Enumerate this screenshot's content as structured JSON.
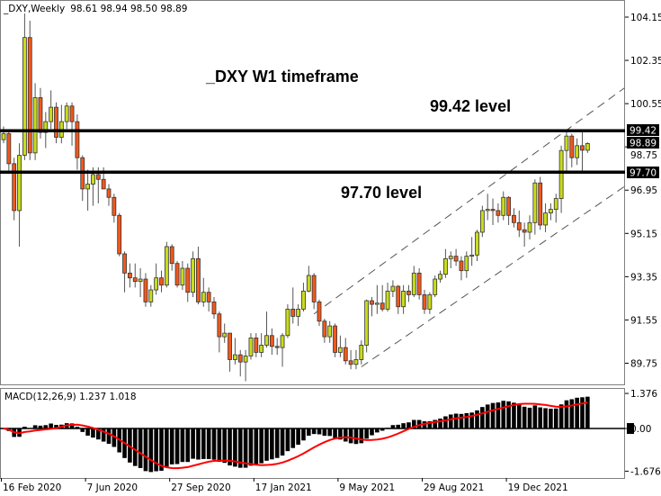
{
  "header": {
    "symbol": "_DXY,Weekly",
    "ohlc_text": "98.61 98.94 98.50 98.89"
  },
  "annotations": {
    "title": "_DXY W1 timeframe",
    "upper_level": "99.42 level",
    "lower_level": "97.70 level"
  },
  "colors": {
    "up": "#c9dc1c",
    "down": "#f2581c",
    "level_line": "#000000",
    "signal": "#ff0000",
    "histogram": "#000000"
  },
  "chart_data": [
    {
      "type": "candlestick",
      "title": "_DXY,Weekly",
      "y_ticks": [
        "104.15",
        "102.35",
        "100.55",
        "98.75",
        "96.95",
        "95.15",
        "93.35",
        "91.55",
        "89.75"
      ],
      "x_ticks": [
        "16 Feb 2020",
        "7 Jun 2020",
        "27 Sep 2020",
        "17 Jan 2021",
        "9 May 2021",
        "29 Aug 2021",
        "19 Dec 2021"
      ],
      "ylim": [
        89.2,
        104.8
      ],
      "price_labels": {
        "upper": "99.42",
        "current": "98.89",
        "lower": "97.70"
      },
      "horizontal_levels": [
        99.42,
        97.7
      ],
      "channel": {
        "upper": [
          [
            59,
            91.8
          ],
          [
            118,
            101.2
          ]
        ],
        "lower": [
          [
            68,
            89.6
          ],
          [
            118,
            97.1
          ]
        ]
      },
      "ohlc": [
        [
          99.05,
          99.6,
          98.9,
          99.3
        ],
        [
          99.3,
          99.4,
          97.7,
          98.05
        ],
        [
          98.05,
          98.3,
          95.7,
          96.1
        ],
        [
          96.1,
          98.9,
          94.6,
          98.4
        ],
        [
          98.4,
          104.3,
          98.2,
          103.3
        ],
        [
          103.3,
          104.0,
          98.2,
          98.5
        ],
        [
          98.5,
          101.4,
          98.2,
          100.8
        ],
        [
          100.8,
          101.2,
          99.1,
          99.35
        ],
        [
          99.35,
          100.2,
          98.7,
          99.8
        ],
        [
          99.8,
          101.1,
          99.5,
          100.4
        ],
        [
          100.4,
          100.6,
          98.9,
          99.15
        ],
        [
          99.15,
          100.5,
          98.9,
          99.8
        ],
        [
          99.8,
          100.6,
          99.5,
          100.45
        ],
        [
          100.45,
          100.6,
          98.8,
          99.8
        ],
        [
          99.8,
          100.1,
          97.8,
          98.3
        ],
        [
          98.3,
          98.4,
          96.5,
          97.0
        ],
        [
          97.0,
          97.8,
          96.1,
          97.2
        ],
        [
          97.2,
          97.9,
          96.3,
          97.6
        ],
        [
          97.6,
          97.9,
          96.4,
          97.4
        ],
        [
          97.4,
          97.9,
          97.0,
          97.0
        ],
        [
          97.0,
          97.2,
          96.3,
          96.65
        ],
        [
          96.65,
          96.8,
          95.6,
          95.9
        ],
        [
          95.9,
          96.0,
          94.2,
          94.3
        ],
        [
          94.3,
          94.4,
          92.7,
          93.5
        ],
        [
          93.5,
          93.9,
          92.9,
          93.3
        ],
        [
          93.3,
          93.9,
          92.9,
          93.15
        ],
        [
          93.15,
          93.7,
          92.5,
          93.25
        ],
        [
          93.25,
          93.5,
          92.1,
          92.3
        ],
        [
          92.3,
          93.0,
          92.1,
          92.8
        ],
        [
          92.8,
          93.9,
          92.6,
          93.3
        ],
        [
          93.3,
          93.6,
          92.7,
          93.0
        ],
        [
          93.0,
          94.8,
          92.9,
          94.6
        ],
        [
          94.6,
          94.7,
          93.6,
          93.9
        ],
        [
          93.9,
          94.0,
          92.9,
          93.0
        ],
        [
          93.0,
          94.0,
          92.8,
          93.7
        ],
        [
          93.7,
          93.9,
          92.3,
          92.7
        ],
        [
          92.7,
          94.4,
          92.5,
          94.1
        ],
        [
          94.1,
          94.6,
          92.2,
          92.3
        ],
        [
          92.3,
          93.3,
          92.1,
          92.7
        ],
        [
          92.7,
          92.9,
          91.9,
          92.3
        ],
        [
          92.3,
          92.5,
          91.6,
          91.8
        ],
        [
          91.8,
          91.9,
          90.2,
          90.85
        ],
        [
          90.85,
          91.4,
          90.6,
          91.0
        ],
        [
          91.0,
          91.0,
          89.4,
          89.9
        ],
        [
          89.9,
          90.8,
          89.7,
          90.1
        ],
        [
          90.1,
          90.3,
          89.2,
          89.8
        ],
        [
          89.8,
          90.3,
          89.0,
          90.05
        ],
        [
          90.05,
          91.0,
          89.9,
          90.8
        ],
        [
          90.8,
          91.0,
          90.0,
          90.2
        ],
        [
          90.2,
          91.0,
          90.0,
          90.5
        ],
        [
          90.5,
          91.9,
          90.4,
          90.9
        ],
        [
          90.9,
          91.2,
          90.1,
          90.45
        ],
        [
          90.45,
          90.8,
          90.1,
          90.4
        ],
        [
          90.4,
          91.0,
          89.6,
          90.9
        ],
        [
          90.9,
          92.2,
          90.8,
          92.0
        ],
        [
          92.0,
          92.9,
          91.4,
          91.7
        ],
        [
          91.7,
          92.2,
          91.3,
          92.0
        ],
        [
          92.0,
          93.1,
          91.9,
          92.75
        ],
        [
          92.75,
          93.8,
          92.7,
          93.4
        ],
        [
          93.4,
          93.5,
          92.0,
          92.3
        ],
        [
          92.3,
          92.4,
          91.3,
          91.5
        ],
        [
          91.5,
          91.6,
          90.6,
          90.85
        ],
        [
          90.85,
          91.5,
          90.6,
          91.3
        ],
        [
          91.3,
          91.4,
          90.0,
          90.2
        ],
        [
          90.2,
          90.9,
          90.0,
          90.4
        ],
        [
          90.4,
          90.8,
          89.7,
          89.85
        ],
        [
          89.85,
          90.3,
          89.5,
          89.7
        ],
        [
          89.7,
          90.3,
          89.5,
          89.9
        ],
        [
          89.9,
          90.7,
          89.7,
          90.5
        ],
        [
          90.5,
          92.4,
          90.2,
          92.35
        ],
        [
          92.35,
          92.5,
          91.7,
          92.2
        ],
        [
          92.2,
          93.0,
          91.8,
          92.25
        ],
        [
          92.25,
          93.0,
          91.9,
          92.0
        ],
        [
          92.0,
          93.1,
          91.9,
          92.75
        ],
        [
          92.75,
          93.2,
          92.5,
          92.95
        ],
        [
          92.95,
          93.0,
          91.8,
          92.1
        ],
        [
          92.1,
          93.0,
          91.8,
          92.75
        ],
        [
          92.75,
          93.0,
          92.3,
          92.6
        ],
        [
          92.6,
          93.8,
          92.5,
          93.5
        ],
        [
          93.5,
          93.7,
          92.4,
          92.6
        ],
        [
          92.6,
          92.8,
          91.8,
          92.0
        ],
        [
          92.0,
          92.7,
          91.8,
          92.6
        ],
        [
          92.6,
          93.4,
          92.5,
          93.25
        ],
        [
          93.25,
          93.6,
          93.1,
          93.45
        ],
        [
          93.45,
          94.5,
          93.3,
          94.1
        ],
        [
          94.1,
          94.4,
          93.7,
          94.2
        ],
        [
          94.2,
          94.5,
          93.8,
          94.0
        ],
        [
          94.0,
          94.2,
          93.2,
          93.6
        ],
        [
          93.6,
          94.4,
          93.3,
          94.2
        ],
        [
          94.2,
          95.0,
          93.8,
          94.25
        ],
        [
          94.25,
          95.3,
          94.0,
          95.2
        ],
        [
          95.2,
          96.3,
          95.0,
          96.1
        ],
        [
          96.1,
          96.8,
          95.7,
          96.15
        ],
        [
          96.15,
          96.6,
          95.5,
          96.1
        ],
        [
          96.1,
          96.4,
          95.6,
          95.9
        ],
        [
          95.9,
          96.9,
          95.7,
          96.65
        ],
        [
          96.65,
          96.7,
          95.5,
          95.9
        ],
        [
          95.9,
          96.2,
          95.4,
          95.6
        ],
        [
          95.6,
          96.1,
          95.0,
          95.3
        ],
        [
          95.3,
          95.6,
          94.6,
          95.2
        ],
        [
          95.2,
          95.9,
          94.9,
          95.6
        ],
        [
          95.6,
          97.4,
          95.1,
          97.25
        ],
        [
          97.25,
          97.5,
          95.3,
          95.5
        ],
        [
          95.5,
          96.4,
          95.2,
          96.0
        ],
        [
          96.0,
          96.4,
          95.7,
          96.15
        ],
        [
          96.15,
          96.8,
          95.6,
          96.6
        ],
        [
          96.6,
          98.8,
          96.0,
          98.6
        ],
        [
          98.6,
          99.4,
          97.7,
          99.2
        ],
        [
          99.2,
          99.3,
          97.9,
          98.3
        ],
        [
          98.3,
          99.1,
          98.0,
          98.8
        ],
        [
          98.8,
          99.4,
          97.7,
          98.61
        ],
        [
          98.61,
          98.94,
          98.5,
          98.89
        ]
      ]
    },
    {
      "type": "bar+line",
      "title": "MACD(12,26,9) 1.237 1.018",
      "params": {
        "fast": 12,
        "slow": 26,
        "signal": 9
      },
      "y_ticks": [
        "1.376",
        "0.00",
        "-1.676"
      ],
      "ylim": [
        -1.676,
        1.376
      ],
      "last_values": {
        "macd": 1.237,
        "signal": 1.018
      }
    }
  ]
}
